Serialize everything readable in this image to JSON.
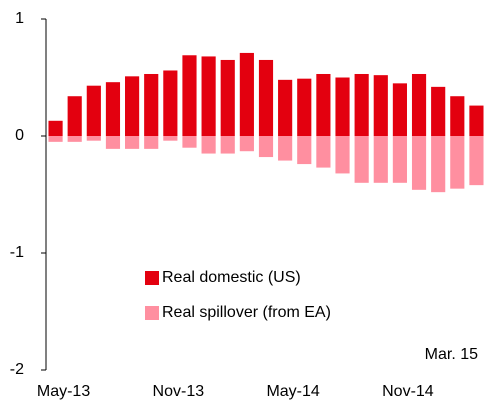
{
  "chart_data": {
    "type": "bar",
    "stacked": true,
    "categories": [
      "May-13",
      null,
      null,
      null,
      null,
      null,
      "Nov-13",
      null,
      null,
      null,
      null,
      null,
      "May-14",
      null,
      null,
      null,
      null,
      null,
      "Nov-14",
      null,
      null,
      null,
      null
    ],
    "series": [
      {
        "name": "Real domestic (US)",
        "color": "#e3000f",
        "values": [
          0.13,
          0.34,
          0.43,
          0.46,
          0.51,
          0.53,
          0.56,
          0.69,
          0.68,
          0.65,
          0.71,
          0.65,
          0.48,
          0.49,
          0.53,
          0.5,
          0.53,
          0.52,
          0.45,
          0.53,
          0.42,
          0.34,
          0.26
        ]
      },
      {
        "name": "Real spillover (from EA)",
        "color": "#ff8fa0",
        "values": [
          -0.05,
          -0.05,
          -0.04,
          -0.11,
          -0.11,
          -0.11,
          -0.04,
          -0.1,
          -0.15,
          -0.15,
          -0.13,
          -0.18,
          -0.21,
          -0.24,
          -0.27,
          -0.32,
          -0.4,
          -0.4,
          -0.4,
          -0.46,
          -0.48,
          -0.45,
          -0.42
        ]
      }
    ],
    "ylim": [
      -2,
      1
    ],
    "yticks": [
      -2,
      -1,
      0,
      1
    ],
    "annotation": "Mar. 15"
  }
}
